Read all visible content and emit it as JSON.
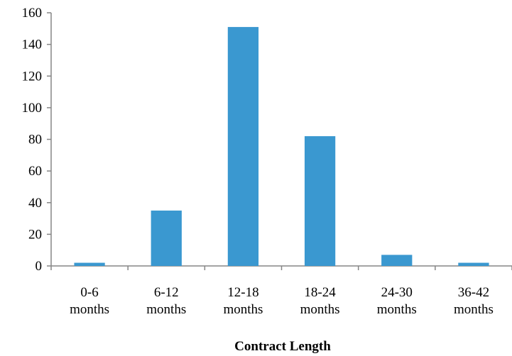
{
  "chart_data": {
    "type": "bar",
    "categories": [
      [
        "0-6",
        "months"
      ],
      [
        "6-12",
        "months"
      ],
      [
        "12-18",
        "months"
      ],
      [
        "18-24",
        "months"
      ],
      [
        "24-30",
        "months"
      ],
      [
        "36-42",
        "months"
      ]
    ],
    "values": [
      2,
      35,
      151,
      82,
      7,
      2
    ],
    "xlabel": "Contract Length",
    "ylabel": "",
    "ylim": [
      0,
      160
    ],
    "yticks": [
      0,
      20,
      40,
      60,
      80,
      100,
      120,
      140,
      160
    ],
    "grid": false,
    "legend": "none",
    "bar_color": "#3a98d0",
    "axis_color": "#868686"
  }
}
